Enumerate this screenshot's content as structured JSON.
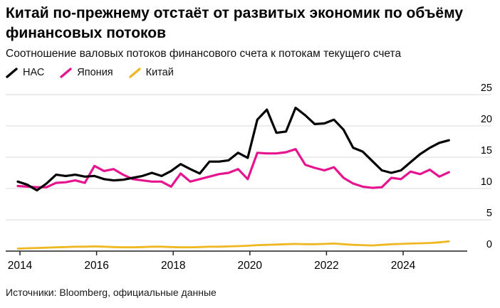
{
  "header": {
    "title": "Китай по-прежнему отстаёт от развитых экономик по объёму финансовых потоков",
    "subtitle": "Соотношение валовых потоков финансового счета к потокам текущего счета"
  },
  "legend": {
    "items": [
      {
        "label": "НАС",
        "color": "#000000"
      },
      {
        "label": "Япония",
        "color": "#e6158f"
      },
      {
        "label": "Китай",
        "color": "#efb822"
      }
    ]
  },
  "source": "Источники: Bloomberg, официальные данные",
  "chart_data": {
    "type": "line",
    "title": "Китай по-прежнему отстаёт от развитых экономик по объёму финансовых потоков",
    "subtitle": "Соотношение валовых потоков финансового счета к потокам текущего счета",
    "frequency": "quarterly",
    "x_range": [
      "2014Q1",
      "2025Q2"
    ],
    "x_tick_labels": [
      "2014",
      "2016",
      "2018",
      "2020",
      "2022",
      "2024"
    ],
    "y_ticks": [
      0,
      5,
      10,
      15,
      20,
      25
    ],
    "ylim": [
      0,
      25
    ],
    "grid": "horizontal",
    "axis_labels_side": "right",
    "legend_position": "top-left",
    "series": [
      {
        "name": "НАС",
        "key": "hac",
        "color": "#000000",
        "values": [
          11.1,
          10.6,
          9.7,
          10.8,
          12.2,
          12.0,
          12.2,
          11.9,
          12.0,
          11.5,
          11.3,
          11.4,
          11.7,
          12.0,
          12.5,
          12.0,
          12.8,
          13.9,
          13.1,
          12.4,
          14.3,
          14.3,
          14.5,
          15.7,
          14.9,
          21.0,
          22.6,
          18.9,
          19.1,
          22.9,
          21.7,
          20.3,
          20.4,
          21.0,
          19.4,
          16.5,
          15.9,
          14.4,
          12.9,
          12.5,
          12.9,
          14.2,
          15.5,
          16.5,
          17.3,
          17.7
        ]
      },
      {
        "name": "Япония",
        "key": "japan",
        "color": "#e6158f",
        "values": [
          10.4,
          10.3,
          10.2,
          10.2,
          10.9,
          11.0,
          11.3,
          10.9,
          13.6,
          12.8,
          13.1,
          12.2,
          11.5,
          11.3,
          11.1,
          11.1,
          10.3,
          12.4,
          11.1,
          11.5,
          11.9,
          12.3,
          12.5,
          13.1,
          11.5,
          15.7,
          15.6,
          15.6,
          15.8,
          16.3,
          13.8,
          13.3,
          12.9,
          13.4,
          11.7,
          10.8,
          10.3,
          10.1,
          10.2,
          11.7,
          11.5,
          12.7,
          12.3,
          13.0,
          11.9,
          12.6
        ]
      },
      {
        "name": "Китай",
        "key": "china",
        "color": "#efb822",
        "values": [
          0.4,
          0.45,
          0.5,
          0.55,
          0.6,
          0.65,
          0.7,
          0.7,
          0.75,
          0.7,
          0.65,
          0.6,
          0.6,
          0.65,
          0.7,
          0.7,
          0.65,
          0.6,
          0.6,
          0.65,
          0.7,
          0.7,
          0.75,
          0.8,
          0.85,
          0.95,
          1.0,
          1.05,
          1.1,
          1.15,
          1.1,
          1.1,
          1.15,
          1.2,
          1.1,
          1.0,
          0.95,
          0.9,
          1.0,
          1.1,
          1.15,
          1.2,
          1.25,
          1.3,
          1.4,
          1.55
        ]
      }
    ]
  }
}
